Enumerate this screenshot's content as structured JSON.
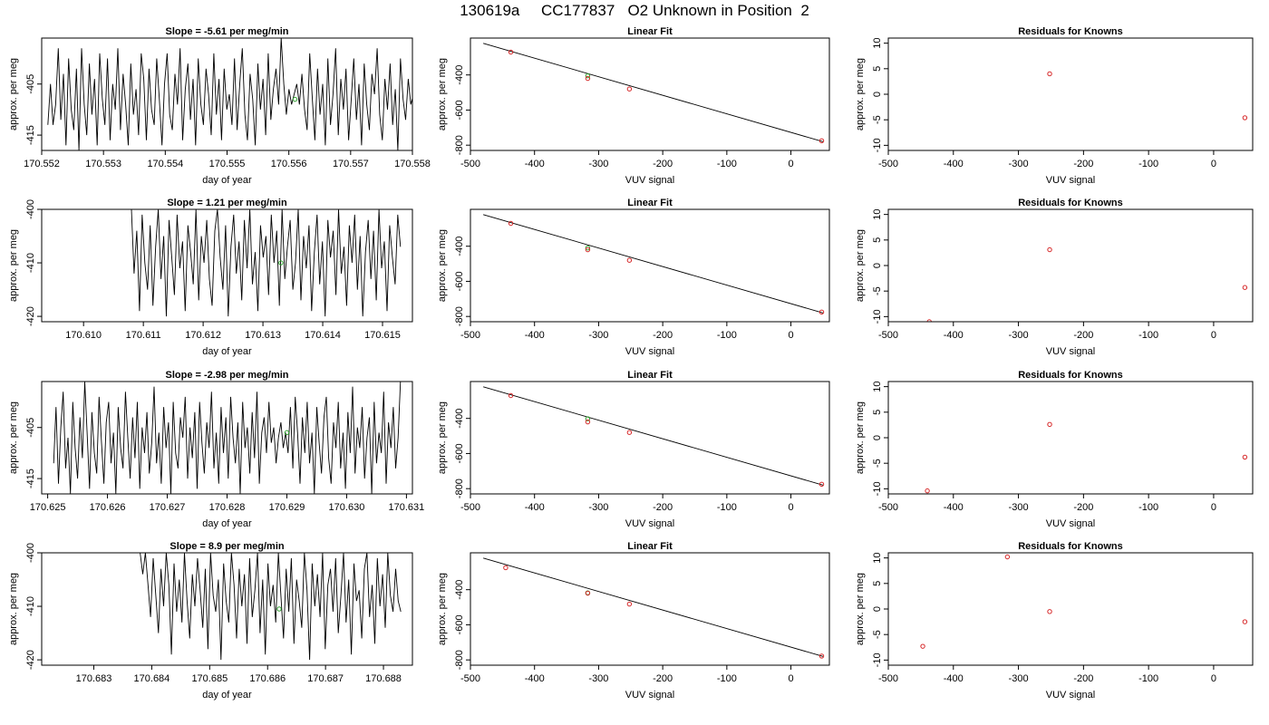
{
  "page": {
    "title": "130619a     CC177837   O2 Unknown in Position  2"
  },
  "colors": {
    "trace": "#000000",
    "known_point": "#d62728",
    "unknown_point": "#2ca02c",
    "frame": "#000000"
  },
  "chart_data": [
    {
      "type": "line",
      "title": "Slope =  -5.61  per meg/min",
      "xlabel": "day of year",
      "ylabel": "approx. per meg",
      "xlim": [
        170.552,
        170.558
      ],
      "ylim": [
        -418,
        -396
      ],
      "xticks": [
        "170.552",
        "170.553",
        "170.554",
        "170.555",
        "170.556",
        "170.557",
        "170.558"
      ],
      "yticks": [
        "-405",
        "-415"
      ],
      "series": [
        {
          "x_start": 170.5521,
          "x_end": 170.5581,
          "values": [
            -413,
            -405,
            -413,
            -409,
            -398,
            -412,
            -403,
            -417,
            -400,
            -410,
            -414,
            -402,
            -418,
            -398,
            -409,
            -415,
            -401,
            -411,
            -404,
            -417,
            -399,
            -408,
            -413,
            -400,
            -416,
            -405,
            -410,
            -398,
            -414,
            -403,
            -409,
            -417,
            -401,
            -411,
            -406,
            -415,
            -399,
            -404,
            -416,
            -402,
            -410,
            -413,
            -400,
            -408,
            -417,
            -405,
            -399,
            -411,
            -414,
            -403,
            -409,
            -398,
            -416,
            -406,
            -401,
            -412,
            -404,
            -417,
            -400,
            -409,
            -413,
            -402,
            -407,
            -415,
            -399,
            -411,
            -404,
            -416,
            -402,
            -410,
            -407,
            -413,
            -400,
            -414,
            -405,
            -398,
            -411,
            -416,
            -403,
            -408,
            -417,
            -401,
            -410,
            -404,
            -415,
            -399,
            -412,
            -406,
            -402,
            -409,
            -396,
            -405,
            -411,
            -406,
            -409,
            -407,
            -405,
            -409,
            -403,
            -410,
            -414,
            -399,
            -408,
            -416,
            -402,
            -411,
            -405,
            -417,
            -400,
            -413,
            -407,
            -398,
            -415,
            -404,
            -410,
            -402,
            -416,
            -408,
            -400,
            -412,
            -405,
            -417,
            -401,
            -409,
            -414,
            -403,
            -407,
            -398,
            -411,
            -416,
            -404,
            -410,
            -401,
            -413,
            -406,
            -418,
            -400,
            -408,
            -412,
            -404,
            -409,
            -407,
            -410,
            -408
          ]
        }
      ],
      "marker": {
        "x": 170.5561,
        "y": -408
      }
    },
    {
      "type": "scatter",
      "title": "Linear Fit",
      "xlabel": "VUV signal",
      "ylabel": "approx. per meg",
      "xlim": [
        -500,
        60
      ],
      "ylim": [
        -830,
        -190
      ],
      "xticks": [
        "-500",
        "-400",
        "-300",
        "-200",
        "-100",
        "0"
      ],
      "yticks": [
        "-400",
        "-600",
        "-800"
      ],
      "fit_line": {
        "x": [
          -480,
          50
        ],
        "y": [
          -220,
          -780
        ]
      },
      "known_points": [
        {
          "x": -437,
          "y": -270
        },
        {
          "x": -317,
          "y": -420
        },
        {
          "x": -252,
          "y": -480
        },
        {
          "x": 48,
          "y": -775
        }
      ],
      "unknown_points": [
        {
          "x": -317,
          "y": -405
        }
      ]
    },
    {
      "type": "scatter",
      "title": "Residuals for Knowns",
      "xlabel": "VUV signal",
      "ylabel": "approx. per meg",
      "xlim": [
        -500,
        60
      ],
      "ylim": [
        -11,
        11
      ],
      "xticks": [
        "-500",
        "-400",
        "-300",
        "-200",
        "-100",
        "0"
      ],
      "yticks": [
        "10",
        "5",
        "0",
        "-5",
        "-10"
      ],
      "points": [
        {
          "x": -252,
          "y": 4.0
        },
        {
          "x": 48,
          "y": -4.6
        }
      ]
    },
    {
      "type": "line",
      "title": "Slope =  1.21  per meg/min",
      "xlabel": "day of year",
      "ylabel": "approx. per meg",
      "xlim": [
        170.6093,
        170.6155
      ],
      "ylim": [
        -421,
        -400
      ],
      "xticks": [
        "170.610",
        "170.611",
        "170.612",
        "170.613",
        "170.614",
        "170.615"
      ],
      "yticks": [
        "-400",
        "-410",
        "-420"
      ],
      "series": [
        {
          "x_start": 170.6108,
          "x_end": 170.6153,
          "values": [
            -400,
            -412,
            -404,
            -419,
            -401,
            -410,
            -415,
            -403,
            -418,
            -407,
            -400,
            -413,
            -405,
            -420,
            -402,
            -409,
            -416,
            -401,
            -411,
            -406,
            -419,
            -403,
            -408,
            -414,
            -400,
            -417,
            -405,
            -410,
            -402,
            -413,
            -418,
            -404,
            -400,
            -409,
            -415,
            -403,
            -420,
            -407,
            -401,
            -412,
            -406,
            -417,
            -402,
            -411,
            -400,
            -414,
            -408,
            -419,
            -403,
            -409,
            -405,
            -416,
            -401,
            -410,
            -404,
            -418,
            -400,
            -413,
            -407,
            -402,
            -415,
            -410,
            -400,
            -417,
            -405,
            -411,
            -403,
            -419,
            -408,
            -401,
            -414,
            -406,
            -420,
            -402,
            -409,
            -404,
            -416,
            -400,
            -412,
            -407,
            -418,
            -403,
            -410,
            -401,
            -415,
            -405,
            -420,
            -408,
            -402,
            -413,
            -404,
            -417,
            -400,
            -411,
            -406,
            -419,
            -403,
            -409,
            -414,
            -401,
            -407
          ]
        }
      ],
      "marker": {
        "x": 170.6133,
        "y": -410
      }
    },
    {
      "type": "scatter",
      "title": "Linear Fit",
      "xlabel": "VUV signal",
      "ylabel": "approx. per meg",
      "xlim": [
        -500,
        60
      ],
      "ylim": [
        -830,
        -190
      ],
      "xticks": [
        "-500",
        "-400",
        "-300",
        "-200",
        "-100",
        "0"
      ],
      "yticks": [
        "-400",
        "-600",
        "-800"
      ],
      "fit_line": {
        "x": [
          -480,
          50
        ],
        "y": [
          -220,
          -780
        ]
      },
      "known_points": [
        {
          "x": -437,
          "y": -270
        },
        {
          "x": -317,
          "y": -420
        },
        {
          "x": -252,
          "y": -480
        },
        {
          "x": 48,
          "y": -775
        }
      ],
      "unknown_points": [
        {
          "x": -317,
          "y": -410
        }
      ]
    },
    {
      "type": "scatter",
      "title": "Residuals for Knowns",
      "xlabel": "VUV signal",
      "ylabel": "approx. per meg",
      "xlim": [
        -500,
        60
      ],
      "ylim": [
        -11,
        11
      ],
      "xticks": [
        "-500",
        "-400",
        "-300",
        "-200",
        "-100",
        "0"
      ],
      "yticks": [
        "10",
        "5",
        "0",
        "-5",
        "-10"
      ],
      "points": [
        {
          "x": -252,
          "y": 3.1
        },
        {
          "x": 48,
          "y": -4.3
        },
        {
          "x": -437,
          "y": -11
        }
      ]
    },
    {
      "type": "line",
      "title": "Slope =  -2.98  per meg/min",
      "xlabel": "day of year",
      "ylabel": "approx. per meg",
      "xlim": [
        170.6249,
        170.6311
      ],
      "ylim": [
        -418,
        -396
      ],
      "xticks": [
        "170.625",
        "170.626",
        "170.627",
        "170.628",
        "170.629",
        "170.630",
        "170.631"
      ],
      "yticks": [
        "-405",
        "-415"
      ],
      "series": [
        {
          "x_start": 170.6251,
          "x_end": 170.6309,
          "values": [
            -412,
            -401,
            -416,
            -405,
            -398,
            -413,
            -407,
            -418,
            -400,
            -409,
            -415,
            -403,
            -411,
            -396,
            -406,
            -417,
            -402,
            -410,
            -414,
            -399,
            -408,
            -416,
            -404,
            -400,
            -412,
            -406,
            -418,
            -401,
            -409,
            -413,
            -398,
            -407,
            -415,
            -403,
            -411,
            -400,
            -417,
            -405,
            -410,
            -402,
            -414,
            -408,
            -397,
            -412,
            -406,
            -416,
            -401,
            -409,
            -404,
            -418,
            -400,
            -410,
            -413,
            -403,
            -407,
            -399,
            -415,
            -405,
            -411,
            -402,
            -417,
            -400,
            -408,
            -414,
            -404,
            -409,
            -398,
            -413,
            -406,
            -416,
            -401,
            -410,
            -403,
            -415,
            -399,
            -407,
            -412,
            -404,
            -418,
            -400,
            -409,
            -405,
            -414,
            -402,
            -411,
            -398,
            -416,
            -406,
            -403,
            -410,
            -400,
            -408,
            -405,
            -412,
            -407,
            -404,
            -409,
            -406,
            -410,
            -401,
            -413,
            -399,
            -406,
            -416,
            -403,
            -410,
            -400,
            -412,
            -406,
            -418,
            -401,
            -408,
            -414,
            -403,
            -399,
            -411,
            -416,
            -404,
            -409,
            -400,
            -413,
            -406,
            -417,
            -402,
            -410,
            -397,
            -414,
            -405,
            -409,
            -401,
            -415,
            -407,
            -403,
            -418,
            -400,
            -412,
            -406,
            -410,
            -398,
            -416,
            -404,
            -409,
            -401,
            -413,
            -407,
            -396
          ]
        }
      ],
      "marker": {
        "x": 170.629,
        "y": -406
      }
    },
    {
      "type": "scatter",
      "title": "Linear Fit",
      "xlabel": "VUV signal",
      "ylabel": "approx. per meg",
      "xlim": [
        -500,
        60
      ],
      "ylim": [
        -830,
        -190
      ],
      "xticks": [
        "-500",
        "-400",
        "-300",
        "-200",
        "-100",
        "0"
      ],
      "yticks": [
        "-400",
        "-600",
        "-800"
      ],
      "fit_line": {
        "x": [
          -480,
          50
        ],
        "y": [
          -220,
          -780
        ]
      },
      "known_points": [
        {
          "x": -437,
          "y": -270
        },
        {
          "x": -317,
          "y": -420
        },
        {
          "x": -252,
          "y": -480
        },
        {
          "x": 48,
          "y": -775
        }
      ],
      "unknown_points": [
        {
          "x": -317,
          "y": -402
        }
      ]
    },
    {
      "type": "scatter",
      "title": "Residuals for Knowns",
      "xlabel": "VUV signal",
      "ylabel": "approx. per meg",
      "xlim": [
        -500,
        60
      ],
      "ylim": [
        -11,
        11
      ],
      "xticks": [
        "-500",
        "-400",
        "-300",
        "-200",
        "-100",
        "0"
      ],
      "yticks": [
        "10",
        "5",
        "0",
        "-5",
        "-10"
      ],
      "points": [
        {
          "x": -252,
          "y": 2.6
        },
        {
          "x": 48,
          "y": -3.8
        },
        {
          "x": -440,
          "y": -10.4
        }
      ]
    },
    {
      "type": "line",
      "title": "Slope =  8.9  per meg/min",
      "xlabel": "day of year",
      "ylabel": "approx. per meg",
      "xlim": [
        170.6821,
        170.6885
      ],
      "ylim": [
        -421,
        -400
      ],
      "xticks": [
        "170.683",
        "170.684",
        "170.685",
        "170.686",
        "170.687",
        "170.688"
      ],
      "yticks": [
        "-400",
        "-410",
        "-420"
      ],
      "series": [
        {
          "x_start": 170.6838,
          "x_end": 170.6883,
          "values": [
            -400,
            -404,
            -400,
            -406,
            -412,
            -401,
            -408,
            -415,
            -403,
            -410,
            -400,
            -406,
            -419,
            -402,
            -411,
            -405,
            -413,
            -400,
            -409,
            -416,
            -404,
            -410,
            -401,
            -407,
            -414,
            -403,
            -418,
            -400,
            -408,
            -411,
            -405,
            -420,
            -402,
            -409,
            -413,
            -400,
            -406,
            -416,
            -403,
            -410,
            -404,
            -417,
            -401,
            -412,
            -407,
            -400,
            -415,
            -405,
            -419,
            -402,
            -410,
            -406,
            -413,
            -400,
            -408,
            -416,
            -403,
            -411,
            -401,
            -417,
            -405,
            -409,
            -414,
            -400,
            -407,
            -420,
            -402,
            -410,
            -404,
            -412,
            -400,
            -418,
            -406,
            -403,
            -411,
            -401,
            -415,
            -408,
            -400,
            -413,
            -405,
            -419,
            -402,
            -409,
            -407,
            -416,
            -403,
            -400,
            -412,
            -406,
            -417,
            -401,
            -410,
            -404,
            -414,
            -400,
            -408,
            -411,
            -403,
            -409,
            -411
          ]
        }
      ],
      "marker": {
        "x": 170.6862,
        "y": -410.5
      }
    },
    {
      "type": "scatter",
      "title": "Linear Fit",
      "xlabel": "VUV signal",
      "ylabel": "approx. per meg",
      "xlim": [
        -500,
        60
      ],
      "ylim": [
        -830,
        -190
      ],
      "xticks": [
        "-500",
        "-400",
        "-300",
        "-200",
        "-100",
        "0"
      ],
      "yticks": [
        "-400",
        "-600",
        "-800"
      ],
      "fit_line": {
        "x": [
          -480,
          50
        ],
        "y": [
          -220,
          -780
        ]
      },
      "known_points": [
        {
          "x": -445,
          "y": -275
        },
        {
          "x": -317,
          "y": -420
        },
        {
          "x": -252,
          "y": -482
        },
        {
          "x": 48,
          "y": -778
        }
      ],
      "unknown_points": [
        {
          "x": -317,
          "y": -418
        }
      ]
    },
    {
      "type": "scatter",
      "title": "Residuals for Knowns",
      "xlabel": "VUV signal",
      "ylabel": "approx. per meg",
      "xlim": [
        -500,
        60
      ],
      "ylim": [
        -11,
        11
      ],
      "xticks": [
        "-500",
        "-400",
        "-300",
        "-200",
        "-100",
        "0"
      ],
      "yticks": [
        "10",
        "5",
        "0",
        "-5",
        "-10"
      ],
      "points": [
        {
          "x": -317,
          "y": 10.2
        },
        {
          "x": -252,
          "y": -0.5
        },
        {
          "x": 48,
          "y": -2.5
        },
        {
          "x": -447,
          "y": -7.3
        }
      ]
    }
  ]
}
